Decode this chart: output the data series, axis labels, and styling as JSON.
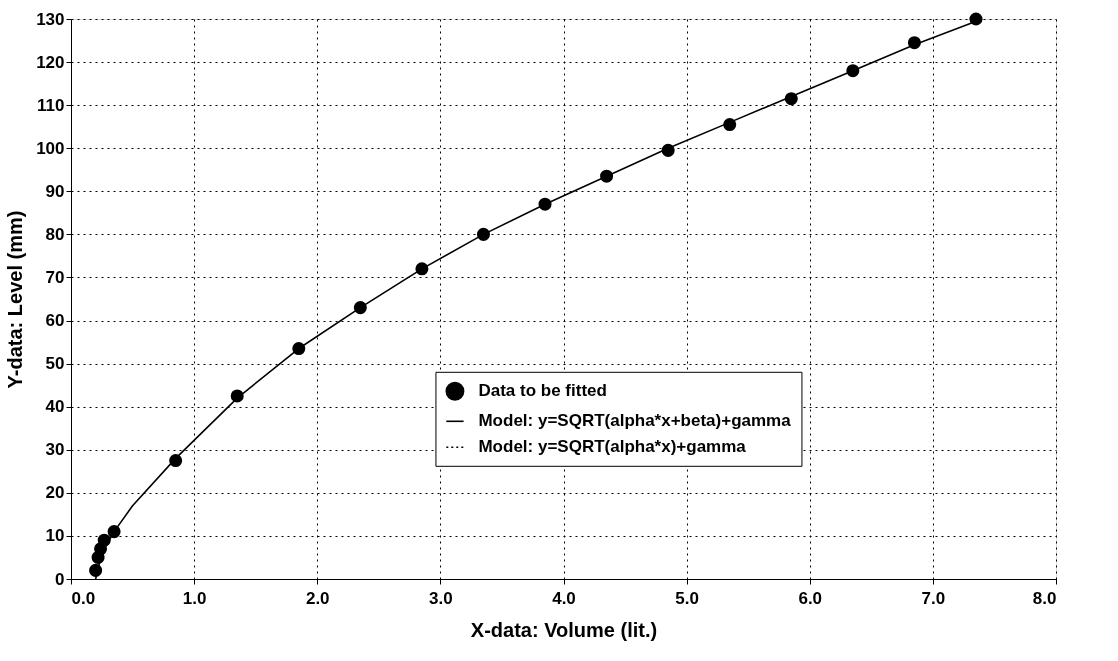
{
  "chart_data": {
    "type": "scatter",
    "xlabel": "X-data: Volume (lit.)",
    "ylabel": "Y-data: Level (mm)",
    "xlim": [
      0,
      8
    ],
    "xticks": [
      {
        "value": 0,
        "label": "0.0"
      },
      {
        "value": 1,
        "label": "1.0"
      },
      {
        "value": 2,
        "label": "2.0"
      },
      {
        "value": 3,
        "label": "3.0"
      },
      {
        "value": 4,
        "label": "4.0"
      },
      {
        "value": 5,
        "label": "5.0"
      },
      {
        "value": 6,
        "label": "6.0"
      },
      {
        "value": 7,
        "label": "7.0"
      },
      {
        "value": 8,
        "label": "8.0"
      }
    ],
    "ylim": [
      0,
      130
    ],
    "yticks": [
      0,
      10,
      20,
      30,
      40,
      50,
      60,
      70,
      80,
      90,
      100,
      110,
      120,
      130
    ],
    "grid": true,
    "legend": "bottom right",
    "series": [
      {
        "name": "Data to be fitted",
        "color": "#000000",
        "marker": "circle",
        "x": [
          0.2,
          0.22,
          0.24,
          0.27,
          0.35,
          0.85,
          1.35,
          1.85,
          2.35,
          2.85,
          3.35,
          3.85,
          4.35,
          4.85,
          5.35,
          5.85,
          6.35,
          6.85,
          7.35
        ],
        "values": [
          2,
          5,
          7,
          9,
          11,
          27.5,
          42.5,
          53.5,
          63,
          72,
          80,
          87,
          93.5,
          99.5,
          105.5,
          111.5,
          118,
          124.5,
          130
        ]
      },
      {
        "name": "Model: y=SQRT(alpha*x+beta)+gamma",
        "type": "line",
        "line_style": "solid",
        "color": "#000000",
        "x": [
          0.2,
          0.25,
          0.35,
          0.5,
          0.85,
          1.35,
          1.85,
          2.35,
          2.85,
          3.35,
          3.85,
          4.35,
          4.85,
          5.35,
          5.85,
          6.35,
          6.85,
          7.4
        ],
        "values": [
          0,
          6,
          11,
          17,
          28,
          42,
          53.5,
          63,
          72,
          80,
          87,
          93.5,
          100,
          106,
          112,
          118,
          124,
          130
        ]
      },
      {
        "name": "Model: y=SQRT(alpha*x)+gamma",
        "type": "line",
        "line_style": "dotted",
        "color": "#000000"
      }
    ]
  }
}
